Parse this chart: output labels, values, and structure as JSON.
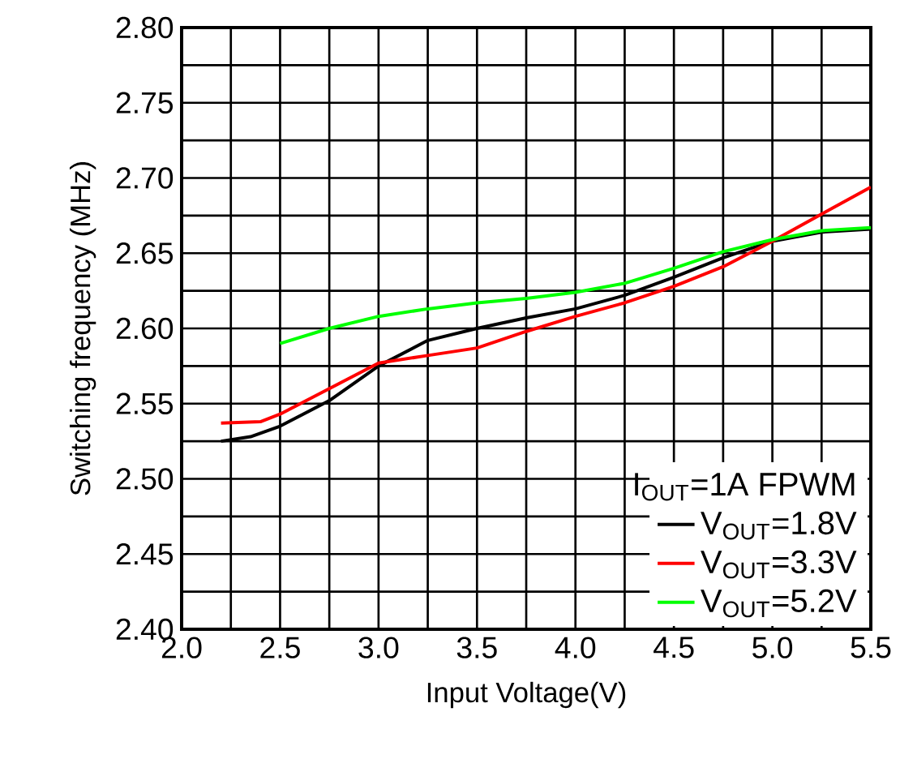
{
  "chart_data": {
    "type": "line",
    "xlabel": "Input Voltage(V)",
    "ylabel": "Switching frequency (MHz)",
    "legend_title": "I$_{OUT}$=1A FPWM",
    "xlim": [
      2.0,
      5.5
    ],
    "ylim": [
      2.4,
      2.8
    ],
    "xticks": [
      {
        "value": 2.0,
        "label": "2.0"
      },
      {
        "value": 2.5,
        "label": "2.5"
      },
      {
        "value": 3.0,
        "label": "3.0"
      },
      {
        "value": 3.5,
        "label": "3.5"
      },
      {
        "value": 4.0,
        "label": "4.0"
      },
      {
        "value": 4.5,
        "label": "4.5"
      },
      {
        "value": 5.0,
        "label": "5.0"
      },
      {
        "value": 5.5,
        "label": "5.5"
      }
    ],
    "yticks": [
      {
        "value": 2.4,
        "label": "2.40"
      },
      {
        "value": 2.45,
        "label": "2.45"
      },
      {
        "value": 2.5,
        "label": "2.50"
      },
      {
        "value": 2.55,
        "label": "2.55"
      },
      {
        "value": 2.6,
        "label": "2.60"
      },
      {
        "value": 2.65,
        "label": "2.65"
      },
      {
        "value": 2.7,
        "label": "2.70"
      },
      {
        "value": 2.75,
        "label": "2.75"
      },
      {
        "value": 2.8,
        "label": "2.80"
      }
    ],
    "grid": true,
    "legend": "bottom right",
    "marker": "none",
    "line_style": "solid",
    "series": [
      {
        "name": "V$_{OUT}$=1.8V",
        "color": "#000000",
        "x": [
          2.2,
          2.35,
          2.5,
          2.75,
          3.0,
          3.25,
          3.5,
          3.75,
          4.0,
          4.25,
          4.5,
          4.75,
          5.0,
          5.25,
          5.5
        ],
        "values": [
          2.525,
          2.528,
          2.535,
          2.552,
          2.575,
          2.592,
          2.6,
          2.607,
          2.613,
          2.622,
          2.634,
          2.647,
          2.658,
          2.664,
          2.666
        ]
      },
      {
        "name": "V$_{OUT}$=3.3V",
        "color": "#ff0000",
        "x": [
          2.2,
          2.4,
          2.5,
          2.75,
          3.0,
          3.25,
          3.5,
          3.75,
          4.0,
          4.25,
          4.5,
          4.75,
          5.0,
          5.25,
          5.5
        ],
        "values": [
          2.537,
          2.538,
          2.543,
          2.56,
          2.577,
          2.582,
          2.587,
          2.598,
          2.608,
          2.617,
          2.628,
          2.641,
          2.658,
          2.676,
          2.694
        ]
      },
      {
        "name": "V$_{OUT}$=5.2V",
        "color": "#00ff00",
        "x": [
          2.5,
          2.75,
          3.0,
          3.25,
          3.5,
          3.75,
          4.0,
          4.25,
          4.5,
          4.75,
          5.0,
          5.25,
          5.5
        ],
        "values": [
          2.59,
          2.6,
          2.608,
          2.613,
          2.617,
          2.62,
          2.624,
          2.63,
          2.64,
          2.651,
          2.659,
          2.665,
          2.667
        ]
      }
    ]
  }
}
